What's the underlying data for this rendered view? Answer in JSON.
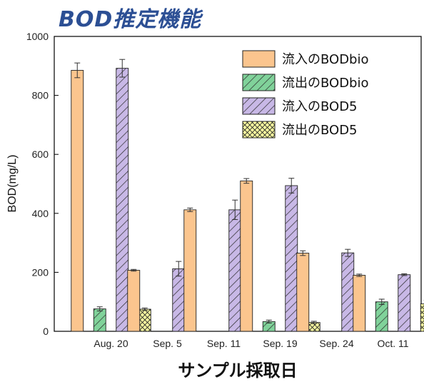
{
  "chart_data": {
    "type": "bar",
    "title": "BOD推定機能",
    "xlabel": "サンプル採取日",
    "ylabel": "BOD(mg/L)",
    "ylim": [
      0,
      1000
    ],
    "yticks": [
      0,
      200,
      400,
      600,
      800,
      1000
    ],
    "categories": [
      "Aug. 20",
      "Sep. 5",
      "Sep. 11",
      "Sep. 19",
      "Sep. 24",
      "Oct. 11"
    ],
    "legend_position": "top-right",
    "grid": false,
    "series": [
      {
        "name": "流入のBODbio",
        "color": "#fbc58e",
        "pattern": "solid",
        "values": [
          885,
          207,
          412,
          510,
          265,
          190
        ],
        "errors": [
          25,
          3,
          6,
          8,
          8,
          4
        ]
      },
      {
        "name": "流出のBODbio",
        "color": "#80d29a",
        "pattern": "diagonal-hatch",
        "values": [
          76,
          null,
          null,
          33,
          null,
          100
        ],
        "errors": [
          7,
          null,
          null,
          5,
          null,
          9
        ]
      },
      {
        "name": "流入のBOD5",
        "color": "#c8b8e6",
        "pattern": "diagonal-hatch",
        "values": [
          892,
          212,
          412,
          494,
          266,
          192
        ],
        "errors": [
          30,
          25,
          33,
          25,
          12,
          3
        ]
      },
      {
        "name": "流出のBOD5",
        "color": "#fafaa0",
        "pattern": "crosshatch",
        "values": [
          75,
          null,
          null,
          30,
          null,
          93
        ],
        "errors": [
          4,
          null,
          null,
          4,
          null,
          12
        ]
      }
    ]
  }
}
